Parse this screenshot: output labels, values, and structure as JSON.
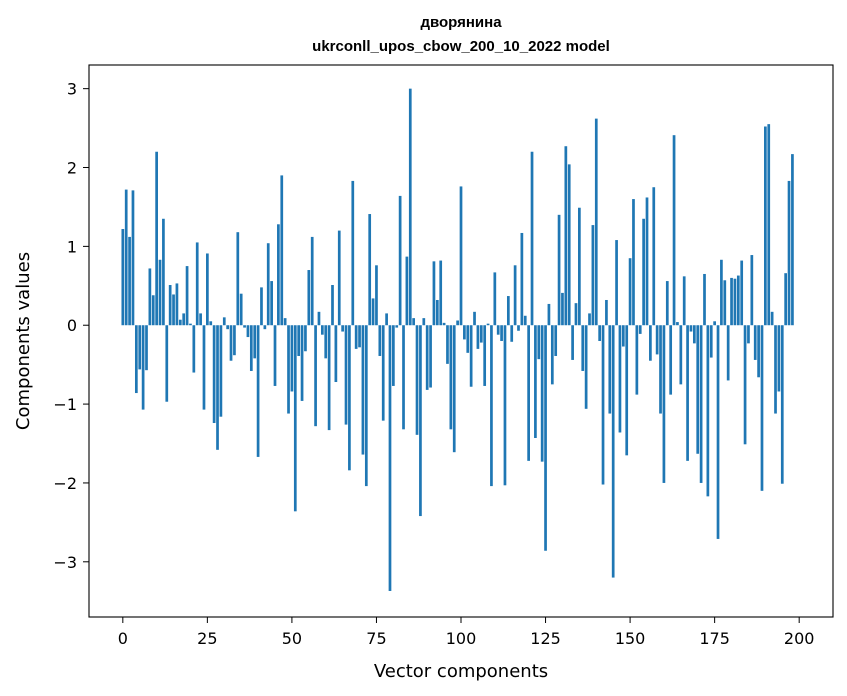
{
  "chart_data": {
    "type": "bar",
    "title": [
      "дворянина",
      "ukrconll_upos_cbow_200_10_2022 model"
    ],
    "xlabel": "Vector components",
    "ylabel": "Components values",
    "xlim": [
      -10,
      210
    ],
    "ylim": [
      -3.7,
      3.3
    ],
    "xticks": [
      0,
      25,
      50,
      75,
      100,
      125,
      150,
      175,
      200
    ],
    "yticks": [
      -3,
      -2,
      -1,
      0,
      1,
      2,
      3
    ],
    "grid": false,
    "bar_color": "#1f77b4",
    "values": [
      1.22,
      1.72,
      1.12,
      1.71,
      -0.86,
      -0.56,
      -1.07,
      -0.57,
      0.72,
      0.38,
      2.2,
      0.83,
      1.35,
      -0.97,
      0.51,
      0.39,
      0.53,
      0.07,
      0.15,
      0.75,
      0.02,
      -0.6,
      1.05,
      0.15,
      -1.07,
      0.91,
      0.05,
      -1.24,
      -1.58,
      -1.16,
      0.1,
      -0.05,
      -0.45,
      -0.38,
      1.18,
      0.4,
      -0.03,
      -0.15,
      -0.58,
      -0.42,
      -1.67,
      0.48,
      -0.05,
      1.04,
      0.56,
      -0.77,
      1.28,
      1.9,
      0.09,
      -1.12,
      -0.84,
      -2.36,
      -0.39,
      -0.96,
      -0.33,
      0.7,
      1.12,
      -1.28,
      0.17,
      -0.12,
      -0.42,
      -1.33,
      0.51,
      -0.72,
      1.2,
      -0.08,
      -1.26,
      -1.84,
      1.83,
      -0.3,
      -0.28,
      -1.64,
      -2.04,
      1.41,
      0.34,
      0.76,
      -0.39,
      -1.21,
      0.15,
      -3.37,
      -0.77,
      -0.03,
      1.64,
      -1.32,
      0.87,
      3.0,
      0.09,
      -1.39,
      -2.42,
      0.09,
      -0.82,
      -0.79,
      0.81,
      0.32,
      0.82,
      0.03,
      -0.49,
      -1.32,
      -1.61,
      0.06,
      1.76,
      -0.18,
      -0.35,
      -0.78,
      0.17,
      -0.3,
      -0.22,
      -0.77,
      0.02,
      -2.04,
      0.67,
      -0.12,
      -0.2,
      -2.03,
      0.37,
      -0.21,
      0.76,
      -0.07,
      1.17,
      0.12,
      -1.72,
      2.2,
      -1.43,
      -0.43,
      -1.73,
      -2.86,
      0.27,
      -0.75,
      -0.39,
      1.4,
      0.41,
      2.27,
      2.04,
      -0.44,
      0.28,
      1.49,
      -0.58,
      -1.06,
      0.15,
      1.27,
      2.62,
      -0.2,
      -2.02,
      0.32,
      -1.12,
      -3.2,
      1.08,
      -1.36,
      -0.27,
      -1.65,
      0.85,
      1.6,
      -0.88,
      -0.11,
      1.35,
      1.62,
      -0.45,
      1.75,
      -0.37,
      -1.12,
      -2.0,
      0.56,
      -0.88,
      2.41,
      0.04,
      -0.75,
      0.62,
      -1.72,
      -0.08,
      -0.23,
      -1.63,
      -2.0,
      0.65,
      -2.17,
      -0.41,
      0.05,
      -2.71,
      0.83,
      0.57,
      -0.7,
      0.6,
      0.59,
      0.63,
      0.82,
      -1.51,
      -0.23,
      0.89,
      -0.44,
      -0.66,
      -2.1,
      2.52,
      2.55,
      0.17,
      -1.12,
      -0.84,
      -2.01,
      0.66,
      1.83,
      2.17
    ]
  }
}
